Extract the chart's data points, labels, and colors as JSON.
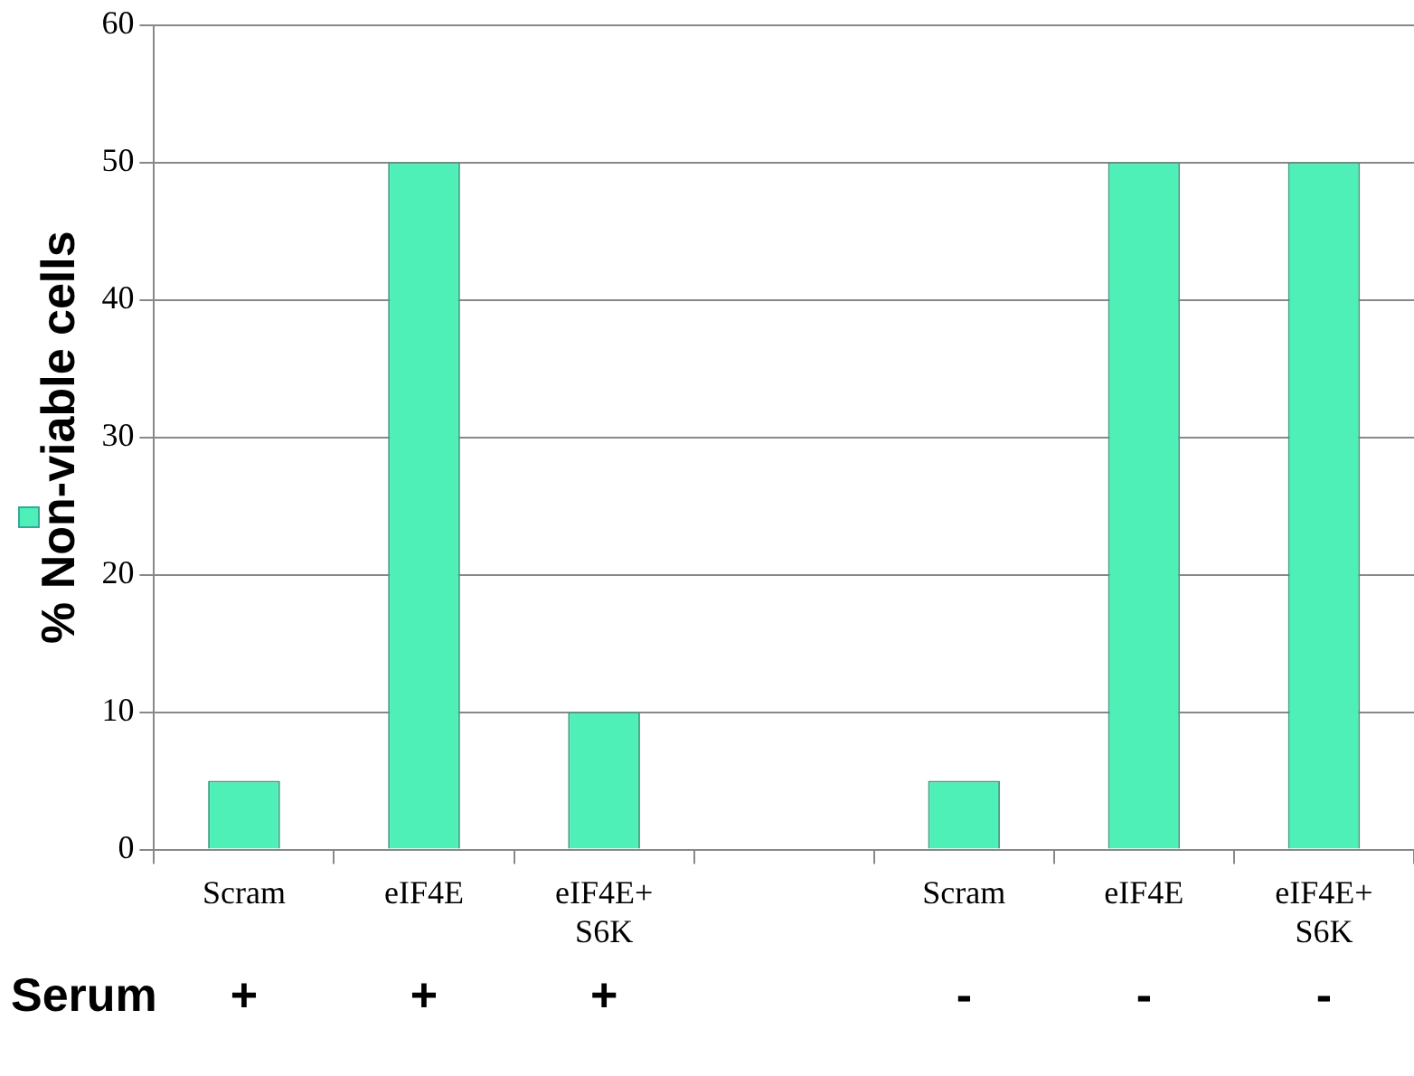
{
  "chart_data": {
    "type": "bar",
    "ylabel": "% Non-viable cells",
    "categories": [
      "Scram",
      "eIF4E",
      "eIF4E+ S6K",
      null,
      "Scram",
      "eIF4E",
      "eIF4E+ S6K"
    ],
    "series": [
      {
        "color": "#4ff0b8",
        "values": [
          5,
          50,
          10,
          null,
          5,
          50,
          50
        ]
      }
    ],
    "ylim": [
      0,
      60
    ],
    "yticks": [
      0,
      10,
      20,
      30,
      40,
      50,
      60
    ],
    "grid": "y",
    "annotations": [
      "Serum",
      "+",
      "+",
      "+",
      "-",
      "-",
      "-"
    ]
  }
}
